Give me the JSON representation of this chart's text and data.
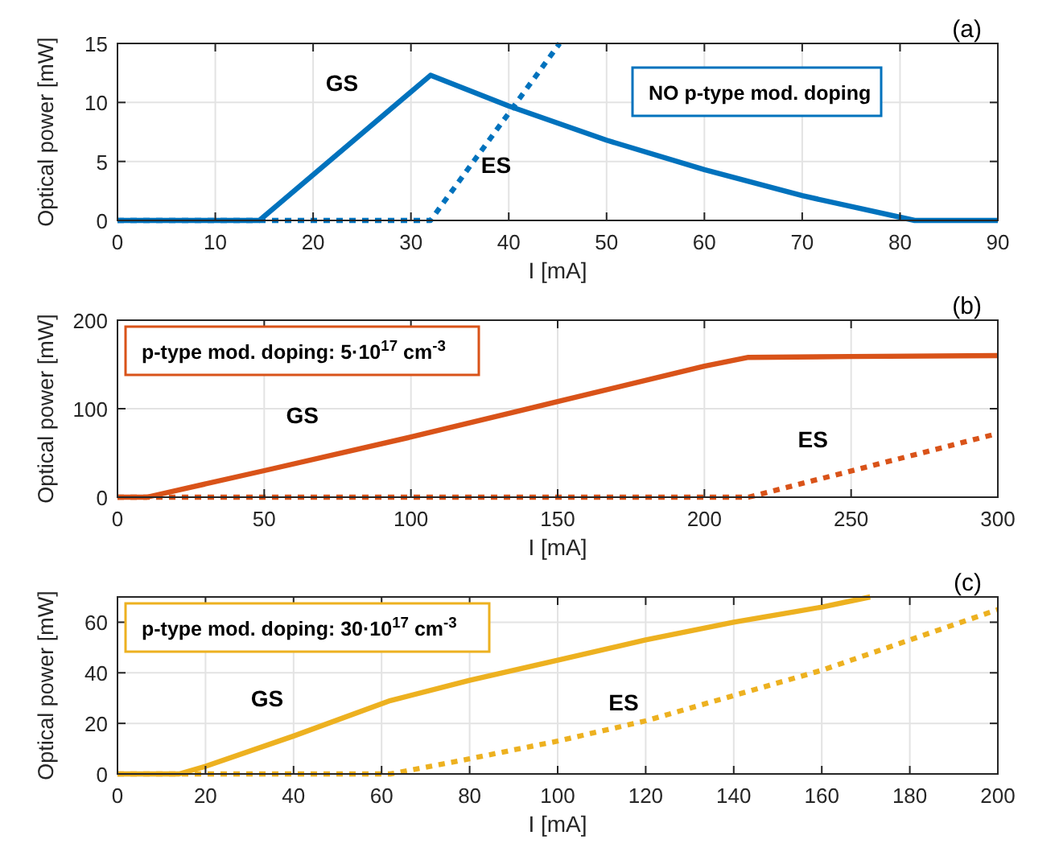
{
  "chart_data": [
    {
      "type": "line",
      "title": "(a)",
      "xlabel": "I [mA]",
      "ylabel": "Optical power [mW]",
      "xlim": [
        0,
        90
      ],
      "ylim": [
        0,
        15
      ],
      "xticks": [
        0,
        10,
        20,
        30,
        40,
        50,
        60,
        70,
        80,
        90
      ],
      "yticks": [
        0,
        5,
        10,
        15
      ],
      "grid": true,
      "series": [
        {
          "name": "GS",
          "color": "#0072bd",
          "line_style": "solid",
          "x": [
            0,
            14.5,
            32,
            40,
            50,
            60,
            70,
            81.5,
            90
          ],
          "values": [
            0,
            0,
            12.3,
            9.7,
            6.8,
            4.3,
            2.1,
            0,
            0
          ]
        },
        {
          "name": "ES",
          "color": "#0072bd",
          "line_style": "dotted",
          "x": [
            0,
            32,
            45.2
          ],
          "values": [
            0,
            0,
            15
          ]
        }
      ],
      "annotations": [
        "NO p-type mod. doping"
      ]
    },
    {
      "type": "line",
      "title": "(b)",
      "xlabel": "I [mA]",
      "ylabel": "Optical power [mW]",
      "xlim": [
        0,
        300
      ],
      "ylim": [
        0,
        200
      ],
      "xticks": [
        0,
        50,
        100,
        150,
        200,
        250,
        300
      ],
      "yticks": [
        0,
        100,
        200
      ],
      "grid": true,
      "series": [
        {
          "name": "GS",
          "color": "#d95319",
          "line_style": "solid",
          "x": [
            0,
            10,
            50,
            100,
            150,
            200,
            215,
            250,
            300
          ],
          "values": [
            0,
            0,
            30,
            68,
            108,
            148,
            158,
            159,
            160
          ]
        },
        {
          "name": "ES",
          "color": "#d95319",
          "line_style": "dotted",
          "x": [
            0,
            215,
            300
          ],
          "values": [
            0,
            0,
            72
          ]
        }
      ],
      "annotations": [
        "p-type mod. doping: 5·10$^{17}$ cm$^{-3}$"
      ]
    },
    {
      "type": "line",
      "title": "(c)",
      "xlabel": "I [mA]",
      "ylabel": "Optical power [mW]",
      "xlim": [
        0,
        200
      ],
      "ylim": [
        0,
        70
      ],
      "xticks": [
        0,
        20,
        40,
        60,
        80,
        100,
        120,
        140,
        160,
        180,
        200
      ],
      "yticks": [
        0,
        20,
        40,
        60
      ],
      "grid": true,
      "series": [
        {
          "name": "GS",
          "color": "#edb120",
          "line_style": "solid",
          "x": [
            0,
            14,
            20,
            40,
            62,
            80,
            100,
            120,
            140,
            160,
            171
          ],
          "values": [
            0,
            0,
            3,
            15,
            29,
            37,
            45,
            53,
            60,
            66,
            70
          ]
        },
        {
          "name": "ES",
          "color": "#edb120",
          "line_style": "dotted",
          "x": [
            0,
            62,
            80,
            100,
            120,
            140,
            160,
            180,
            200
          ],
          "values": [
            0,
            0,
            6,
            13,
            21,
            31,
            41,
            53,
            65
          ]
        }
      ],
      "annotations": [
        "p-type mod. doping: 30·10$^{17}$ cm$^{-3}$"
      ]
    }
  ]
}
